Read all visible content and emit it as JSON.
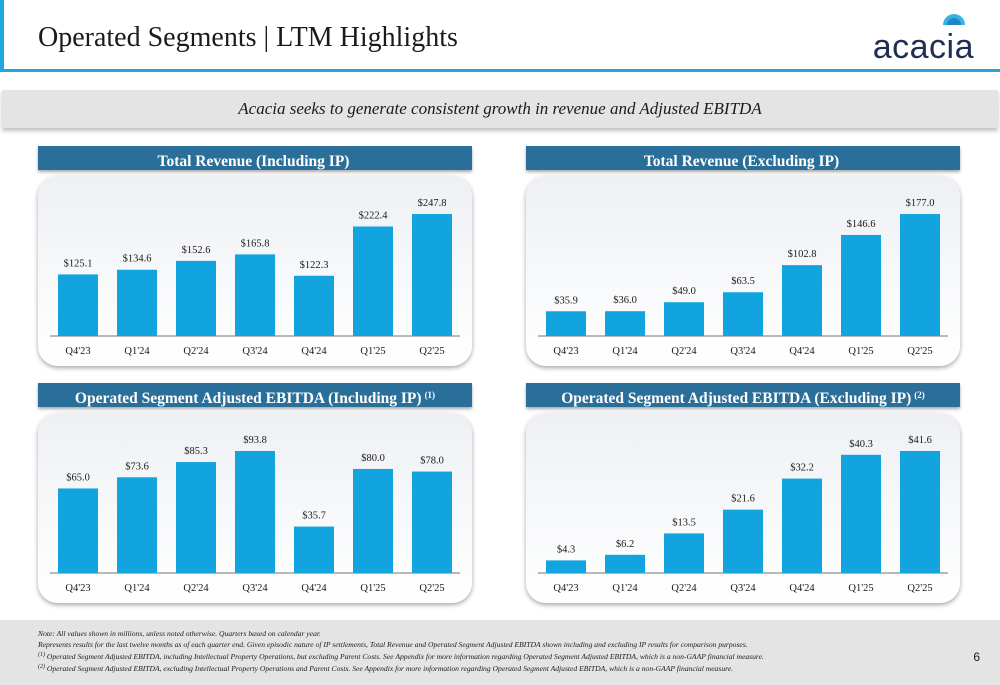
{
  "slide": {
    "title": "Operated Segments | LTM Highlights",
    "tagline": "Acacia seeks to generate consistent growth in revenue and Adjusted EBITDA",
    "logo_text": "acacia",
    "page_number": "6",
    "accent_color": "#1fa8e0",
    "header_color": "#2a6f9a",
    "bar_color": "#12a4df"
  },
  "panels": [
    {
      "title": "Total Revenue (Including IP)",
      "footnote_ref": ""
    },
    {
      "title": "Total Revenue (Excluding IP)",
      "footnote_ref": ""
    },
    {
      "title": "Operated Segment Adjusted EBITDA (Including IP)",
      "footnote_ref": "(1)"
    },
    {
      "title": "Operated Segment Adjusted EBITDA (Excluding IP)",
      "footnote_ref": "(2)"
    }
  ],
  "chart_data": [
    {
      "type": "bar",
      "title": "Total Revenue (Including IP)",
      "categories": [
        "Q4'23",
        "Q1'24",
        "Q2'24",
        "Q3'24",
        "Q4'24",
        "Q1'25",
        "Q2'25"
      ],
      "values": [
        125.1,
        134.6,
        152.6,
        165.8,
        122.3,
        222.4,
        247.8
      ],
      "labels": [
        "$125.1",
        "$134.6",
        "$152.6",
        "$165.8",
        "$122.3",
        "$222.4",
        "$247.8"
      ],
      "grid": false
    },
    {
      "type": "bar",
      "title": "Total Revenue (Excluding IP)",
      "categories": [
        "Q4'23",
        "Q1'24",
        "Q2'24",
        "Q3'24",
        "Q4'24",
        "Q1'25",
        "Q2'25"
      ],
      "values": [
        35.9,
        36.0,
        49.0,
        63.5,
        102.8,
        146.6,
        177.0
      ],
      "labels": [
        "$35.9",
        "$36.0",
        "$49.0",
        "$63.5",
        "$102.8",
        "$146.6",
        "$177.0"
      ],
      "grid": false
    },
    {
      "type": "bar",
      "title": "Operated Segment Adjusted EBITDA (Including IP)",
      "categories": [
        "Q4'23",
        "Q1'24",
        "Q2'24",
        "Q3'24",
        "Q4'24",
        "Q1'25",
        "Q2'25"
      ],
      "values": [
        65.0,
        73.6,
        85.3,
        93.8,
        35.7,
        80.0,
        78.0
      ],
      "labels": [
        "$65.0",
        "$73.6",
        "$85.3",
        "$93.8",
        "$35.7",
        "$80.0",
        "$78.0"
      ],
      "grid": false
    },
    {
      "type": "bar",
      "title": "Operated Segment Adjusted EBITDA (Excluding IP)",
      "categories": [
        "Q4'23",
        "Q1'24",
        "Q2'24",
        "Q3'24",
        "Q4'24",
        "Q1'25",
        "Q2'25"
      ],
      "values": [
        4.3,
        6.2,
        13.5,
        21.6,
        32.2,
        40.3,
        41.6
      ],
      "labels": [
        "$4.3",
        "$6.2",
        "$13.5",
        "$21.6",
        "$32.2",
        "$40.3",
        "$41.6"
      ],
      "grid": false
    }
  ],
  "footnotes": {
    "note": "Note: All values shown in millions, unless noted otherwise. Quarters based on calendar year.",
    "represents": "Represents results for the last twelve months as of each quarter end. Given episodic nature of IP settlements, Total Revenue and Operated Segment Adjusted EBITDA shown including and excluding IP results for comparison purposes.",
    "fn1_marker": "(1)",
    "fn1": "Operated Segment Adjusted EBITDA, including Intellectual Property Operations, but excluding Parent Costs. See Appendix for more information regarding Operated Segment Adjusted EBITDA, which is a non-GAAP financial measure.",
    "fn2_marker": "(2)",
    "fn2": "Operated Segment Adjusted EBITDA, excluding Intellectual Property Operations and Parent Costs. See Appendix for more information regarding Operated Segment Adjusted EBITDA, which is a non-GAAP financial measure."
  }
}
